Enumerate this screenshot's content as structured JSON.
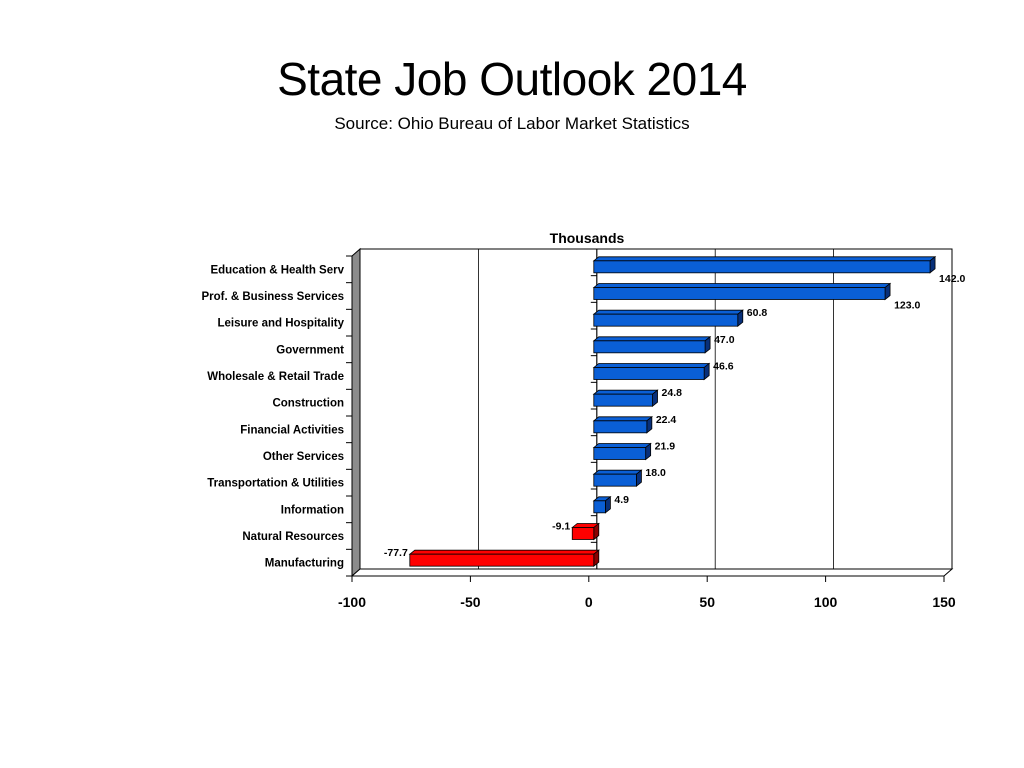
{
  "slide": {
    "title": "State Job Outlook 2014",
    "subtitle": "Source: Ohio Bureau of Labor Market Statistics"
  },
  "chart_data": {
    "type": "bar",
    "orientation": "horizontal",
    "title": "Thousands",
    "xlim": [
      -100,
      150
    ],
    "x_ticks": [
      "-100",
      "-50",
      "0",
      "50",
      "100",
      "150"
    ],
    "grid": true,
    "categories": [
      "Education & Health Serv",
      "Prof. & Business Services",
      "Leisure and Hospitality",
      "Government",
      "Wholesale & Retail Trade",
      "Construction",
      "Financial Activities",
      "Other Services",
      "Transportation & Utilities",
      "Information",
      "Natural Resources",
      "Manufacturing"
    ],
    "values": [
      142.0,
      123.0,
      60.8,
      47.0,
      46.6,
      24.8,
      22.4,
      21.9,
      18.0,
      4.9,
      -9.1,
      -77.7
    ],
    "value_labels": [
      "142.0",
      "123.0",
      "60.8",
      "47.0",
      "46.6",
      "24.8",
      "22.4",
      "21.9",
      "18.0",
      "4.9",
      "-9.1",
      "-77.7"
    ],
    "colors": {
      "positive": "#0a5fd6",
      "negative": "#ff0000",
      "border": "#000000"
    }
  }
}
